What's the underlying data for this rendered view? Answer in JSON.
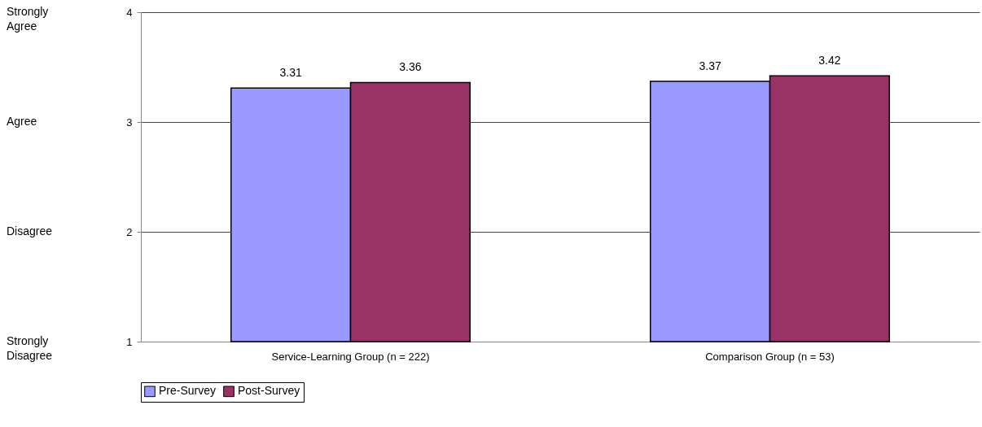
{
  "chart_data": {
    "type": "bar",
    "categories": [
      "Service-Learning Group (n = 222)",
      "Comparison Group (n = 53)"
    ],
    "series": [
      {
        "name": "Pre-Survey",
        "color": "#9999ff",
        "values": [
          3.31,
          3.37
        ]
      },
      {
        "name": "Post-Survey",
        "color": "#993366",
        "values": [
          3.36,
          3.42
        ]
      }
    ],
    "ylim": [
      1,
      4
    ],
    "yticks": [
      1,
      2,
      3,
      4
    ],
    "grid": "y",
    "legend": "bottom",
    "data_labels": true,
    "annotations": [
      "Strongly Agree",
      "Agree",
      "Disagree",
      "Strongly Disagree"
    ]
  }
}
